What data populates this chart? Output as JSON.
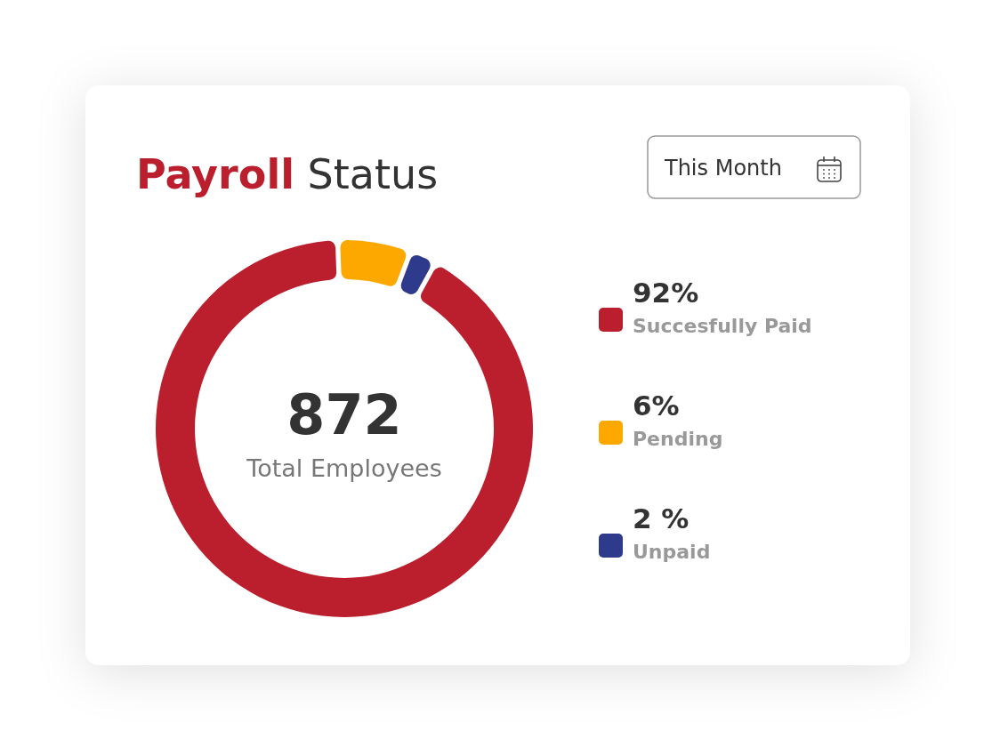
{
  "chart_data": {
    "type": "donut",
    "title": "Payroll Status",
    "categories": [
      "Succesfully Paid",
      "Pending",
      "Unpaid"
    ],
    "values": [
      92,
      6,
      2
    ],
    "colors": [
      "#bb1e2d",
      "#fca800",
      "#2e3a8c"
    ],
    "value_labels": [
      "92%",
      "6%",
      "2 %"
    ],
    "legend": "right",
    "annotations": [
      "872",
      "Total Employees",
      "This Month"
    ]
  }
}
